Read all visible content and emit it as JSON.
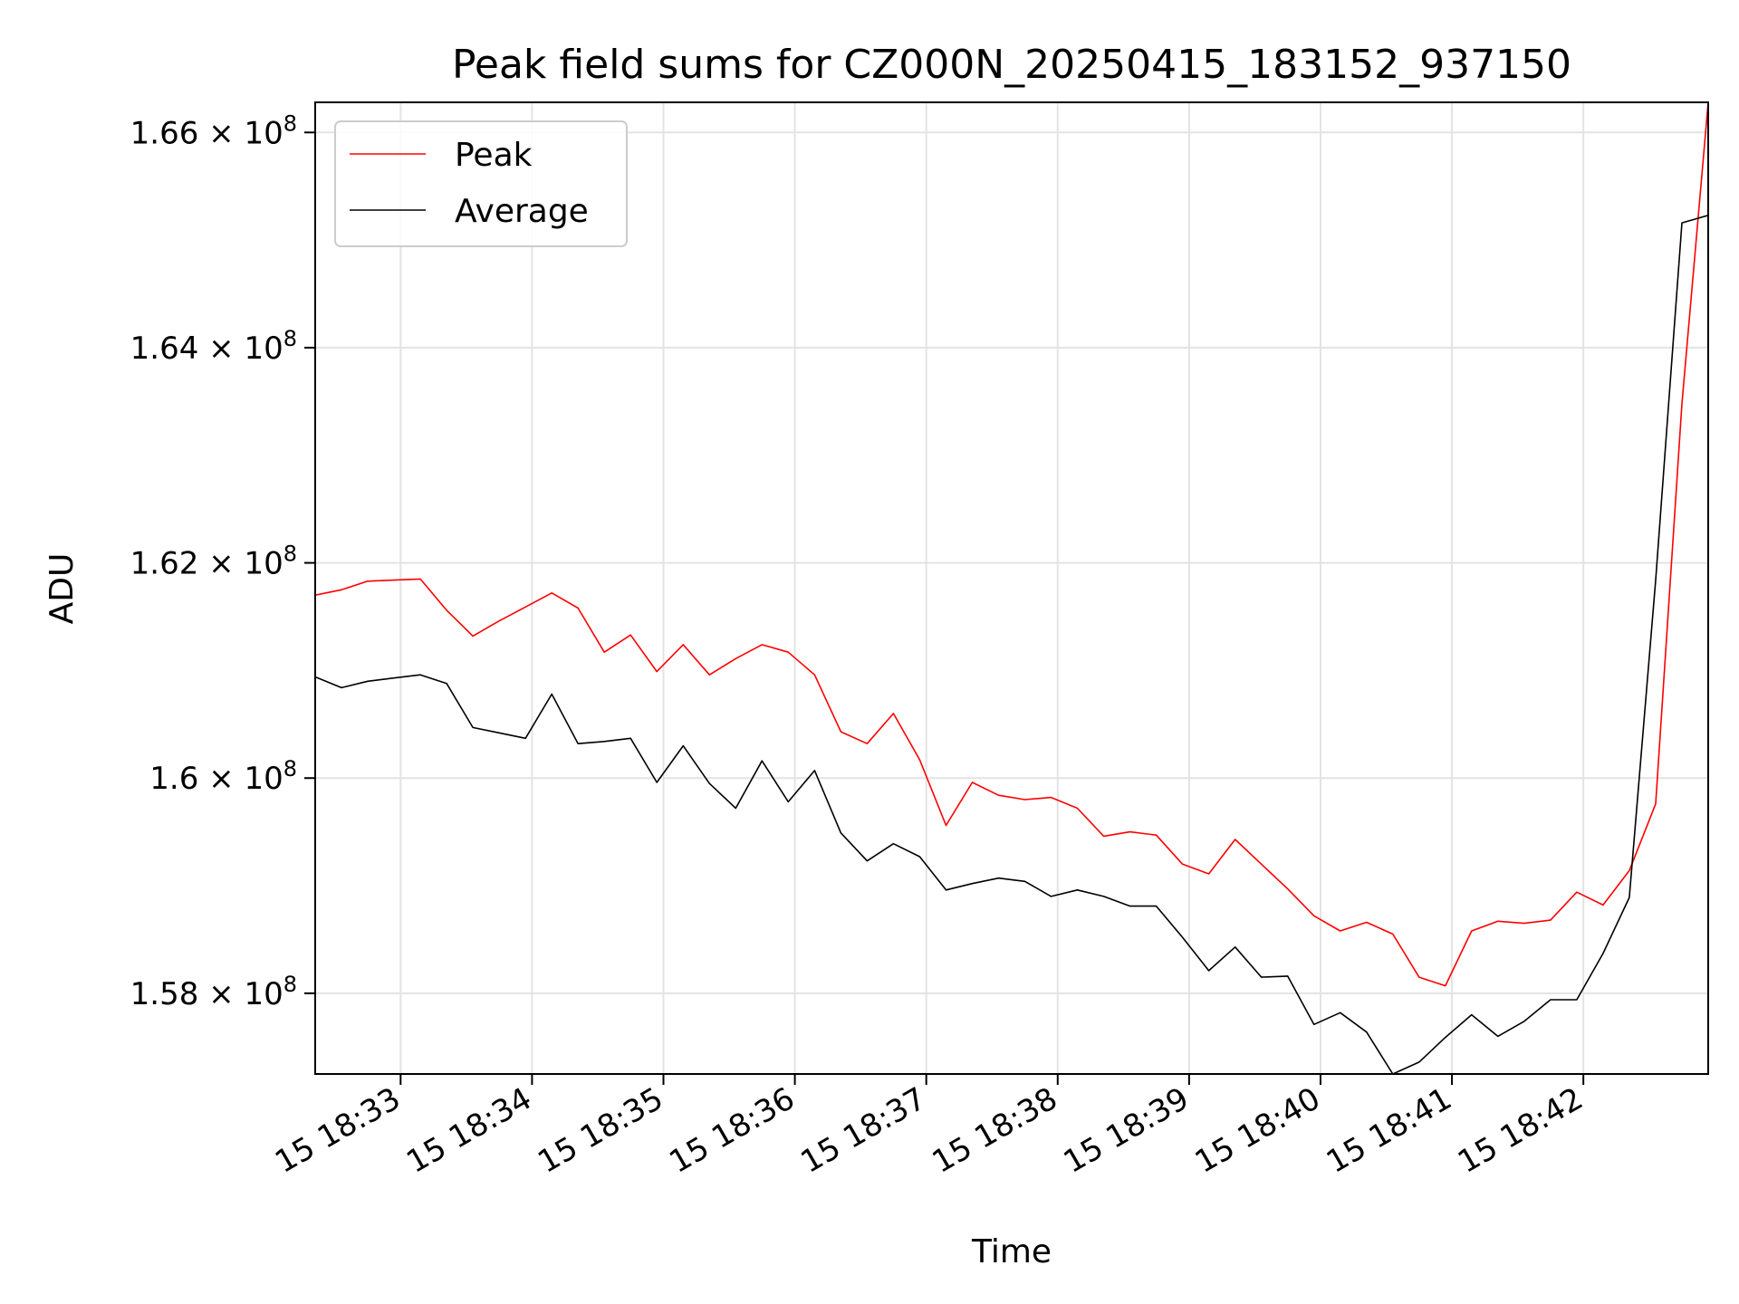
{
  "chart_data": {
    "type": "line",
    "title": "Peak field sums for CZ000N_20250415_183152_937150",
    "xlabel": "Time",
    "ylabel": "ADU",
    "x": [
      "18:32:21",
      "18:32:33",
      "18:32:45",
      "18:32:57",
      "18:33:09",
      "18:33:21",
      "18:33:33",
      "18:33:45",
      "18:33:57",
      "18:34:09",
      "18:34:21",
      "18:34:33",
      "18:34:45",
      "18:34:57",
      "18:35:09",
      "18:35:21",
      "18:35:33",
      "18:35:45",
      "18:35:57",
      "18:36:09",
      "18:36:21",
      "18:36:33",
      "18:36:45",
      "18:36:57",
      "18:37:09",
      "18:37:21",
      "18:37:33",
      "18:37:45",
      "18:37:57",
      "18:38:09",
      "18:38:21",
      "18:38:33",
      "18:38:45",
      "18:38:57",
      "18:39:09",
      "18:39:21",
      "18:39:33",
      "18:39:45",
      "18:39:57",
      "18:40:09",
      "18:40:21",
      "18:40:33",
      "18:40:45",
      "18:40:57",
      "18:41:09",
      "18:41:21",
      "18:41:33",
      "18:41:45",
      "18:41:57",
      "18:42:09",
      "18:42:21",
      "18:42:33",
      "18:42:45",
      "18:42:57"
    ],
    "xlim": [
      "18:32:21",
      "18:42:57"
    ],
    "x_ticks": [
      "18:33",
      "18:34",
      "18:35",
      "18:36",
      "18:37",
      "18:38",
      "18:39",
      "18:40",
      "18:41",
      "18:42"
    ],
    "x_tick_labels": [
      "15 18:33",
      "15 18:34",
      "15 18:35",
      "15 18:36",
      "15 18:37",
      "15 18:38",
      "15 18:39",
      "15 18:40",
      "15 18:41",
      "15 18:42"
    ],
    "ylim": [
      157250000,
      166280000
    ],
    "y_ticks": [
      158000000,
      160000000,
      162000000,
      164000000,
      166000000
    ],
    "y_tick_labels": [
      {
        "mantissa": "1.58",
        "exponent": "8"
      },
      {
        "mantissa": "1.6",
        "exponent": "8"
      },
      {
        "mantissa": "1.62",
        "exponent": "8"
      },
      {
        "mantissa": "1.64",
        "exponent": "8"
      },
      {
        "mantissa": "1.66",
        "exponent": "8"
      }
    ],
    "grid": true,
    "legend_position": "upper-left",
    "series": [
      {
        "name": "Peak",
        "color": "#ff0000",
        "values": [
          161700000,
          161750000,
          161830000,
          161840000,
          161850000,
          161560000,
          161320000,
          161460000,
          161590000,
          161720000,
          161580000,
          161170000,
          161330000,
          160990000,
          161240000,
          160960000,
          161110000,
          161240000,
          161170000,
          160960000,
          160430000,
          160320000,
          160600000,
          160170000,
          159560000,
          159960000,
          159840000,
          159800000,
          159820000,
          159720000,
          159460000,
          159500000,
          159470000,
          159200000,
          159110000,
          159430000,
          159200000,
          158970000,
          158720000,
          158580000,
          158660000,
          158550000,
          158150000,
          158070000,
          158580000,
          158670000,
          158650000,
          158680000,
          158940000,
          158820000,
          159140000,
          159760000,
          163480000,
          166280000
        ]
      },
      {
        "name": "Average",
        "color": "#000000",
        "values": [
          160940000,
          160840000,
          160900000,
          160930000,
          160960000,
          160880000,
          160470000,
          160420000,
          160370000,
          160780000,
          160320000,
          160340000,
          160370000,
          159960000,
          160300000,
          159950000,
          159720000,
          160160000,
          159780000,
          160070000,
          159490000,
          159230000,
          159390000,
          159270000,
          158960000,
          159020000,
          159070000,
          159040000,
          158900000,
          158960000,
          158900000,
          158810000,
          158810000,
          158520000,
          158210000,
          158430000,
          158150000,
          158160000,
          157710000,
          157820000,
          157640000,
          157250000,
          157360000,
          157590000,
          157800000,
          157600000,
          157740000,
          157940000,
          157940000,
          158370000,
          158890000,
          161840000,
          165160000,
          165230000
        ]
      }
    ]
  }
}
